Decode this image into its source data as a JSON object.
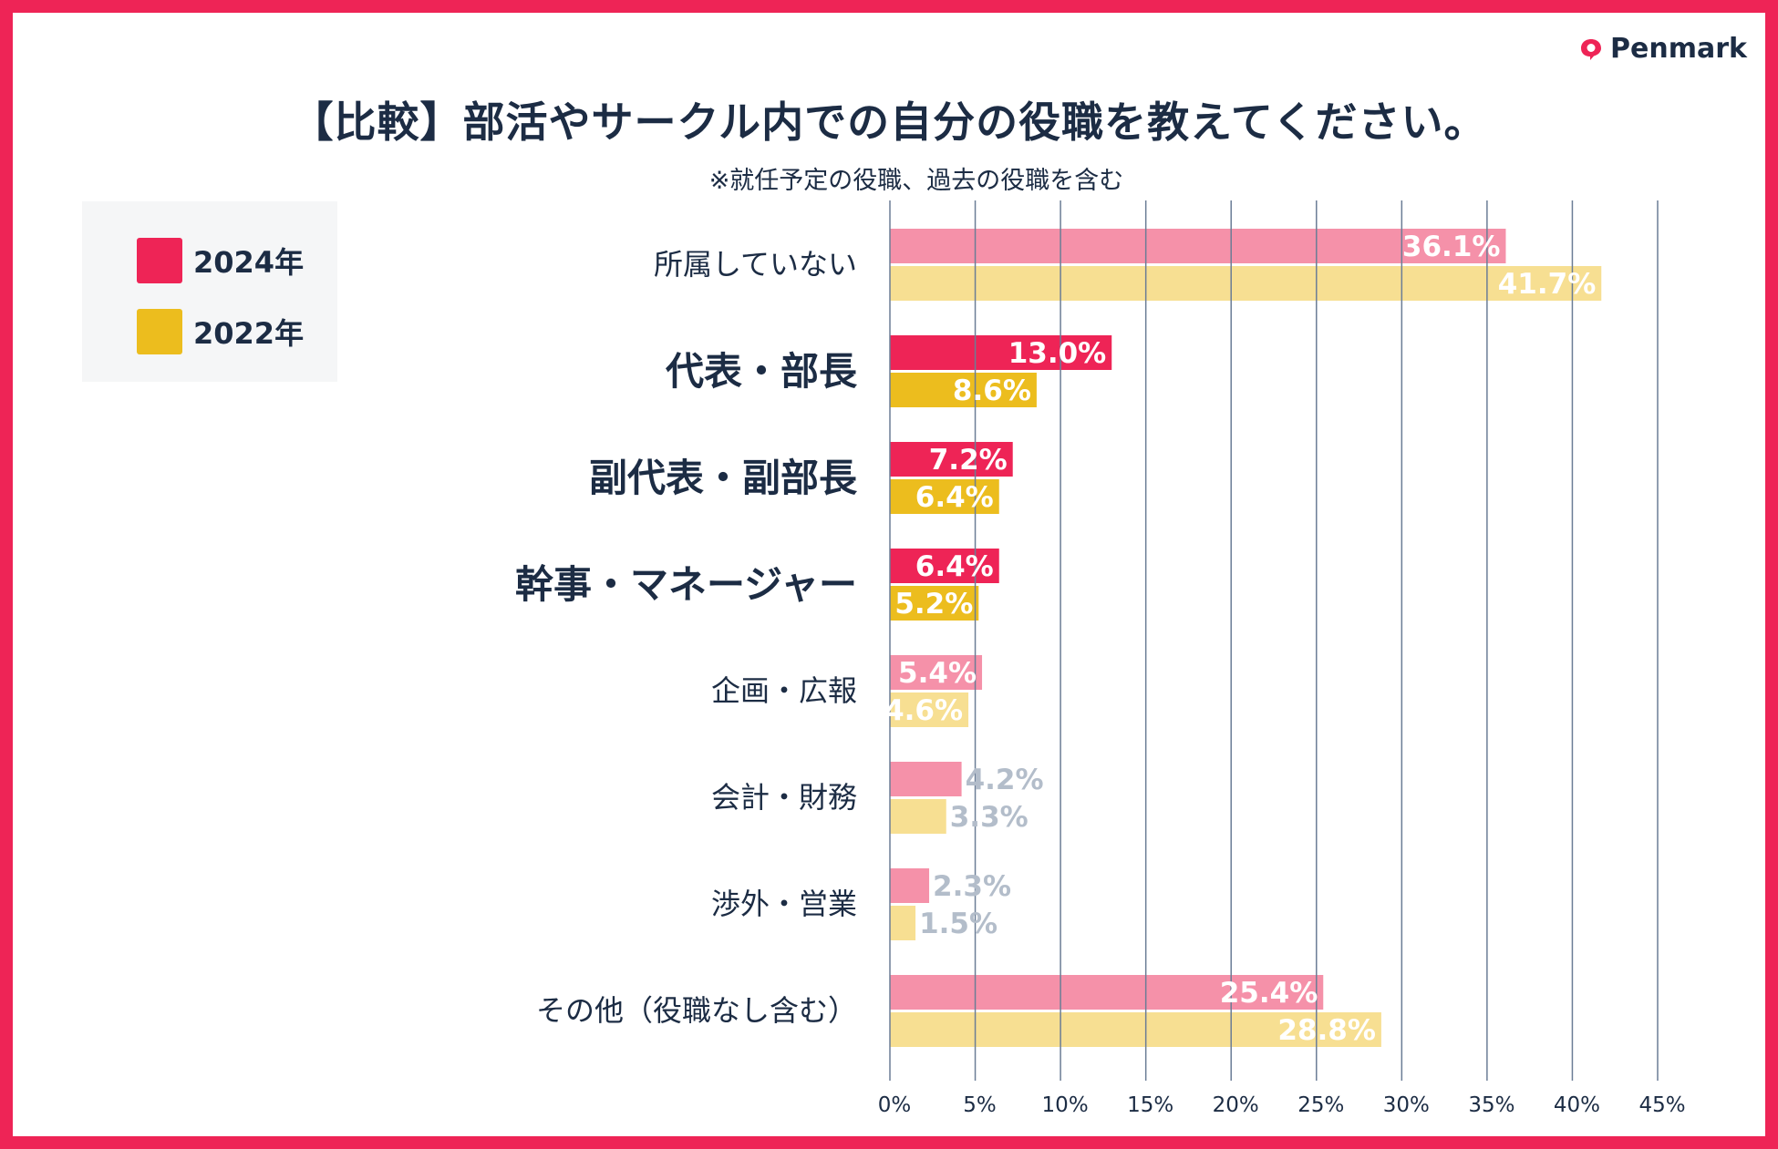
{
  "brand": {
    "name": "Penmark",
    "icon": "chat-bubble-icon",
    "color": "#ee2456"
  },
  "title": "【比較】部活やサークル内での自分の役職を教えてください。",
  "subtitle": "※就任予定の役職、過去の役職を含む",
  "legend": [
    {
      "label": "2024年",
      "color": "#ee2456"
    },
    {
      "label": "2022年",
      "color": "#ecbd1e"
    }
  ],
  "chart_data": {
    "type": "bar",
    "orientation": "horizontal",
    "categories": [
      "所属していない",
      "代表・部長",
      "副代表・副部長",
      "幹事・マネージャー",
      "企画・広報",
      "会計・財務",
      "渉外・営業",
      "その他（役職なし含む）"
    ],
    "highlighted": [
      false,
      true,
      true,
      true,
      false,
      false,
      false,
      false
    ],
    "series": [
      {
        "name": "2024年",
        "values": [
          36.1,
          13.0,
          7.2,
          6.4,
          5.4,
          4.2,
          2.3,
          25.4
        ],
        "labels": [
          "36.1%",
          "13.0%",
          "7.2%",
          "6.4%",
          "5.4%",
          "4.2%",
          "2.3%",
          "25.4%"
        ],
        "color": "#ee2456",
        "muted_color": "#f591a9"
      },
      {
        "name": "2022年",
        "values": [
          41.7,
          8.6,
          6.4,
          5.2,
          4.6,
          3.3,
          1.5,
          28.8
        ],
        "labels": [
          "41.7%",
          "8.6%",
          "6.4%",
          "5.2%",
          "4.6%",
          "3.3%",
          "1.5%",
          "28.8%"
        ],
        "color": "#ecbd1e",
        "muted_color": "#f7df92"
      }
    ],
    "xlim": [
      0,
      45
    ],
    "xticks": [
      "0%",
      "5%",
      "10%",
      "15%",
      "20%",
      "25%",
      "30%",
      "35%",
      "40%",
      "45%"
    ],
    "grid": "vertical",
    "legend_position": "top-left",
    "outside_label_color": "#b3bdca"
  }
}
